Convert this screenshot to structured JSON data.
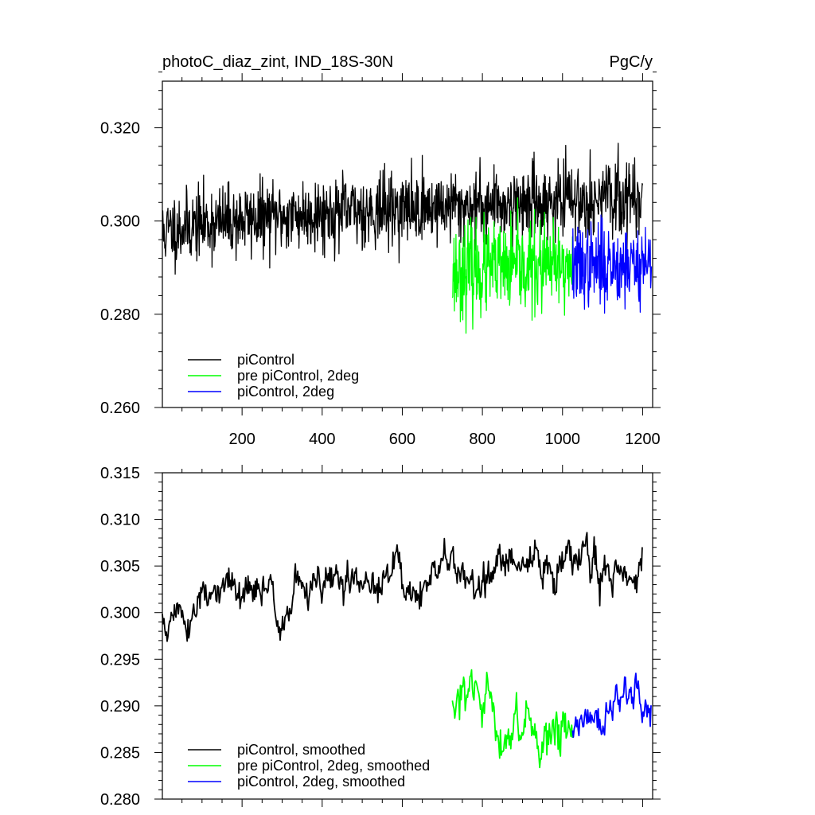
{
  "chart_data": [
    {
      "type": "line",
      "title": "photoC_diaz_zint, IND_18S-30N",
      "units": "PgC/y",
      "xlim": [
        1,
        1225
      ],
      "ylim": [
        0.26,
        0.33
      ],
      "x_ticks": [
        200,
        400,
        600,
        800,
        1000,
        1200
      ],
      "x_tick_labels": [
        "200",
        "400",
        "600",
        "800",
        "1000",
        "1200"
      ],
      "y_ticks": [
        0.26,
        0.28,
        0.3,
        0.32
      ],
      "y_tick_labels": [
        "0.260",
        "0.280",
        "0.300",
        "0.320"
      ],
      "legend_position": "bottom-left",
      "series": [
        {
          "name": "piControl",
          "color": "#000000",
          "x_start": 1,
          "x_end": 1200,
          "mean_start": 0.297,
          "mean_end": 0.305,
          "noise": 0.007,
          "seed": 11
        },
        {
          "name": "pre piControl, 2deg",
          "color": "#00ff00",
          "x_start": 725,
          "x_end": 1025,
          "mean_start": 0.289,
          "mean_end": 0.29,
          "noise": 0.009,
          "seed": 23
        },
        {
          "name": "piControl, 2deg",
          "color": "#0000ff",
          "x_start": 1025,
          "x_end": 1222,
          "mean_start": 0.29,
          "mean_end": 0.291,
          "noise": 0.008,
          "seed": 37
        }
      ]
    },
    {
      "type": "line",
      "title": "",
      "xlim": [
        1,
        1225
      ],
      "ylim": [
        0.28,
        0.315
      ],
      "x_ticks": [
        200,
        400,
        600,
        800,
        1000,
        1200
      ],
      "x_tick_labels": [],
      "y_ticks": [
        0.28,
        0.285,
        0.29,
        0.295,
        0.3,
        0.305,
        0.31,
        0.315
      ],
      "y_tick_labels": [
        "0.280",
        "0.285",
        "0.290",
        "0.295",
        "0.300",
        "0.305",
        "0.310",
        "0.315"
      ],
      "legend_position": "bottom-left",
      "series": [
        {
          "name": "piControl, smoothed",
          "color": "#000000",
          "x_start": 1,
          "x_end": 1200,
          "mean_start": 0.2985,
          "mean_end": 0.3055,
          "noise": 0.0022,
          "seed": 51
        },
        {
          "name": "pre piControl, 2deg, smoothed",
          "color": "#00ff00",
          "x_start": 725,
          "x_end": 1025,
          "mean_start": 0.2885,
          "mean_end": 0.2885,
          "noise": 0.0028,
          "seed": 63
        },
        {
          "name": "piControl, 2deg, smoothed",
          "color": "#0000ff",
          "x_start": 1025,
          "x_end": 1222,
          "mean_start": 0.2875,
          "mean_end": 0.2905,
          "noise": 0.0022,
          "seed": 77
        }
      ]
    }
  ]
}
